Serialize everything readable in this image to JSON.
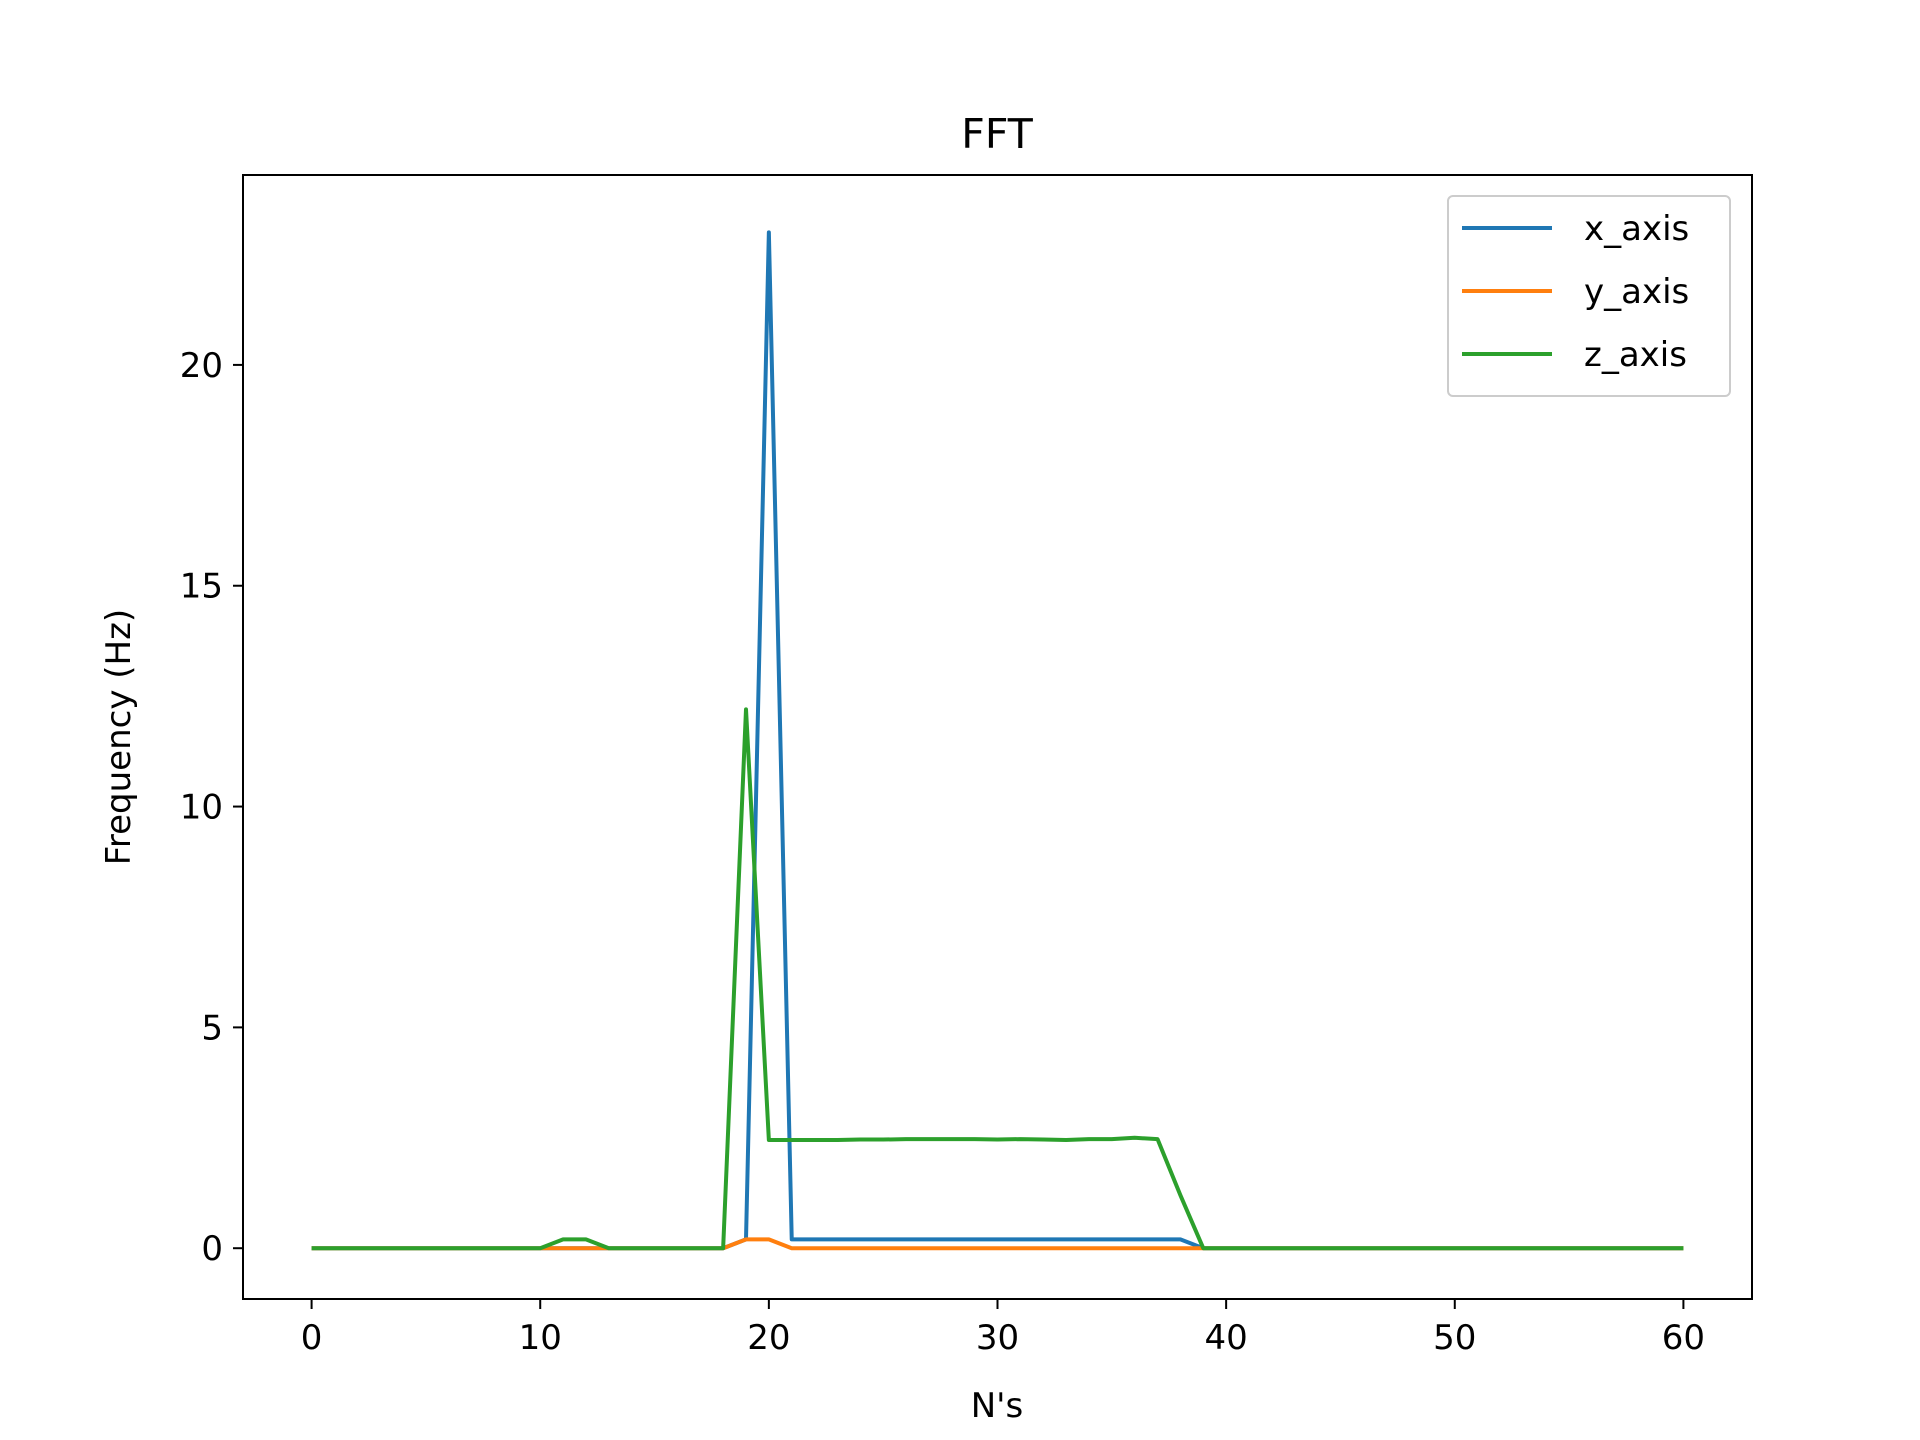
{
  "chart_data": {
    "type": "line",
    "title": "FFT",
    "xlabel": "N's",
    "ylabel": "Frequency (Hz)",
    "xlim": [
      -3,
      63
    ],
    "ylim": [
      -1.15,
      24.3
    ],
    "xticks": [
      0,
      10,
      20,
      30,
      40,
      50,
      60
    ],
    "yticks": [
      0,
      5,
      10,
      15,
      20
    ],
    "grid": false,
    "legend_position": "top-right",
    "x": [
      0,
      1,
      2,
      3,
      4,
      5,
      6,
      7,
      8,
      9,
      10,
      11,
      12,
      13,
      14,
      15,
      16,
      17,
      18,
      19,
      20,
      21,
      22,
      23,
      24,
      25,
      26,
      27,
      28,
      29,
      30,
      31,
      32,
      33,
      34,
      35,
      36,
      37,
      38,
      39,
      40,
      41,
      42,
      43,
      44,
      45,
      46,
      47,
      48,
      49,
      50,
      51,
      52,
      53,
      54,
      55,
      56,
      57,
      58,
      59,
      60
    ],
    "series": [
      {
        "name": "x_axis",
        "color": "#1f77b4",
        "values": [
          0,
          0,
          0,
          0,
          0,
          0,
          0,
          0,
          0,
          0,
          0,
          0,
          0,
          0,
          0,
          0,
          0,
          0,
          0,
          0.2,
          23,
          0.2,
          0.2,
          0.2,
          0.2,
          0.2,
          0.2,
          0.2,
          0.2,
          0.2,
          0.2,
          0.2,
          0.2,
          0.2,
          0.2,
          0.2,
          0.2,
          0.2,
          0.2,
          0,
          0,
          0,
          0,
          0,
          0,
          0,
          0,
          0,
          0,
          0,
          0,
          0,
          0,
          0,
          0,
          0,
          0,
          0,
          0,
          0,
          0
        ]
      },
      {
        "name": "y_axis",
        "color": "#ff7f0e",
        "values": [
          0,
          0,
          0,
          0,
          0,
          0,
          0,
          0,
          0,
          0,
          0,
          0,
          0,
          0,
          0,
          0,
          0,
          0,
          0,
          0.2,
          0.2,
          0,
          0,
          0,
          0,
          0,
          0,
          0,
          0,
          0,
          0,
          0,
          0,
          0,
          0,
          0,
          0,
          0,
          0,
          0,
          0,
          0,
          0,
          0,
          0,
          0,
          0,
          0,
          0,
          0,
          0,
          0,
          0,
          0,
          0,
          0,
          0,
          0,
          0,
          0,
          0
        ]
      },
      {
        "name": "z_axis",
        "color": "#2ca02c",
        "values": [
          0,
          0,
          0,
          0,
          0,
          0,
          0,
          0,
          0,
          0,
          0,
          0.2,
          0.2,
          0,
          0,
          0,
          0,
          0,
          0,
          12.2,
          2.45,
          2.45,
          2.45,
          2.45,
          2.46,
          2.46,
          2.47,
          2.47,
          2.47,
          2.47,
          2.46,
          2.47,
          2.46,
          2.45,
          2.47,
          2.47,
          2.5,
          2.47,
          1.2,
          0,
          0,
          0,
          0,
          0,
          0,
          0,
          0,
          0,
          0,
          0,
          0,
          0,
          0,
          0,
          0,
          0,
          0,
          0,
          0,
          0,
          0
        ]
      }
    ]
  }
}
